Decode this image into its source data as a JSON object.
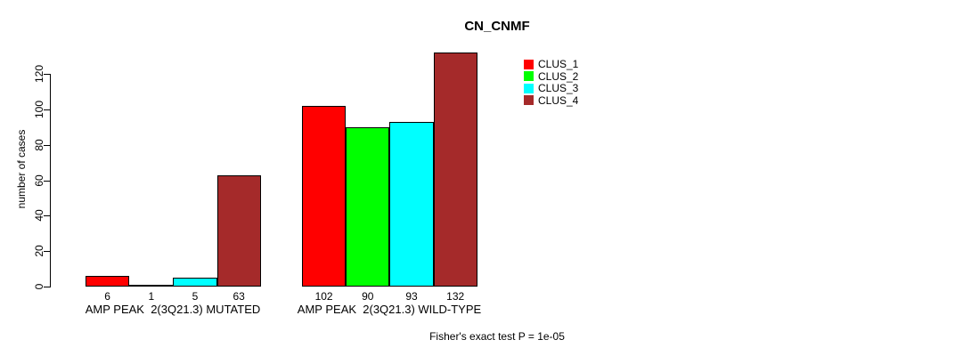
{
  "chart_data": {
    "type": "bar",
    "title": "CN_CNMF",
    "ylabel": "number of cases",
    "ylim": [
      0,
      120
    ],
    "yticks": [
      0,
      20,
      40,
      60,
      80,
      100,
      120
    ],
    "grid": false,
    "legend_position": "top-right",
    "axis_color": "#000000",
    "categories": [
      "AMP PEAK  2(3Q21.3) MUTATED",
      "AMP PEAK  2(3Q21.3) WILD-TYPE"
    ],
    "series": [
      {
        "name": "CLUS_1",
        "color": "#ff0000",
        "values": [
          6,
          102
        ]
      },
      {
        "name": "CLUS_2",
        "color": "#00ff00",
        "values": [
          1,
          90
        ]
      },
      {
        "name": "CLUS_3",
        "color": "#00ffff",
        "values": [
          5,
          93
        ]
      },
      {
        "name": "CLUS_4",
        "color": "#a52a2a",
        "values": [
          63,
          132
        ]
      }
    ],
    "bar_value_labels": [
      [
        "6",
        "1",
        "5",
        "63"
      ],
      [
        "102",
        "90",
        "93",
        "132"
      ]
    ],
    "footnote": "Fisher's exact test P = 1e-05"
  }
}
